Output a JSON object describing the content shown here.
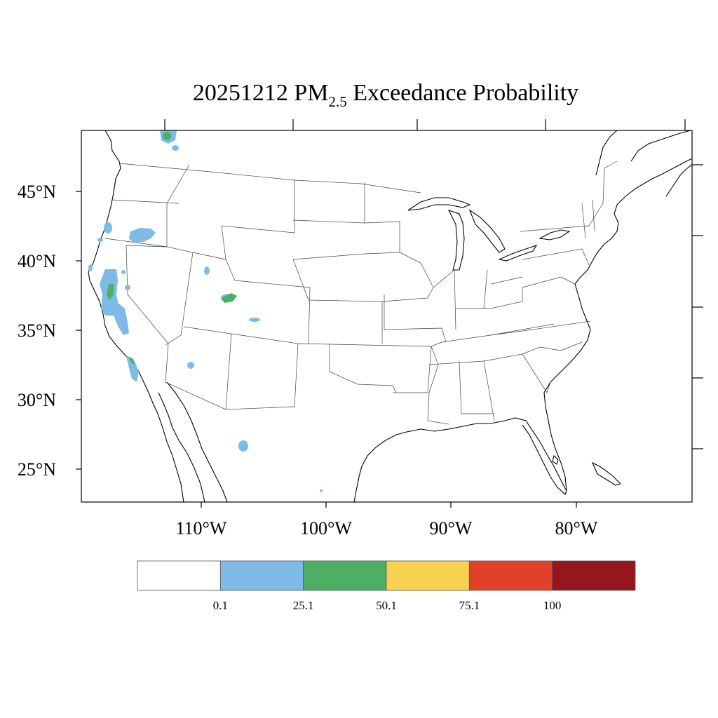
{
  "title": {
    "date": "20251212",
    "pollutant_main": "PM",
    "pollutant_sub": "2.5",
    "rest": "Exceedance Probability"
  },
  "lat_labels": [
    "45°N",
    "40°N",
    "35°N",
    "30°N",
    "25°N"
  ],
  "lon_labels": [
    "110°W",
    "100°W",
    "90°W",
    "80°W"
  ],
  "colorbar": {
    "colors": [
      "#ffffff",
      "#7dbbe6",
      "#4caf63",
      "#f9d150",
      "#e34127",
      "#95161d"
    ],
    "labels": [
      "0.1",
      "25.1",
      "50.1",
      "75.1",
      "100"
    ]
  }
}
